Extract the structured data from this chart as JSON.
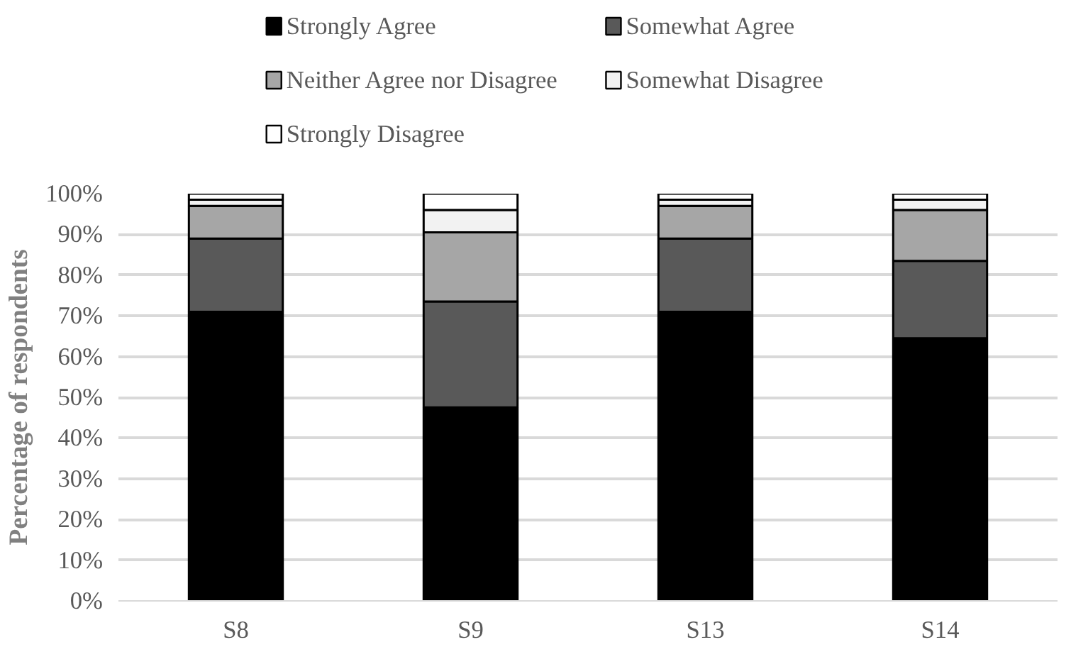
{
  "chart_data": {
    "type": "bar",
    "stacked": true,
    "ylabel": "Percentage of respondents",
    "categories": [
      "S8",
      "S9",
      "S13",
      "S14"
    ],
    "series": [
      {
        "name": "Strongly Agree",
        "color": "#000000",
        "values": [
          71,
          47.5,
          71,
          64.5
        ]
      },
      {
        "name": "Somewhat Agree",
        "color": "#595959",
        "values": [
          18,
          26,
          18,
          19
        ]
      },
      {
        "name": "Neither Agree nor Disagree",
        "color": "#a6a6a6",
        "values": [
          8,
          17,
          8,
          12.5
        ]
      },
      {
        "name": "Somewhat Disagree",
        "color": "#f2f2f2",
        "values": [
          1.5,
          5.5,
          1.5,
          2.5
        ]
      },
      {
        "name": "Strongly Disagree",
        "color": "#ffffff",
        "values": [
          1.5,
          4,
          1.5,
          1.5
        ]
      }
    ],
    "ylim": [
      0,
      100
    ],
    "yticks": [
      {
        "value": 0,
        "label": "0%"
      },
      {
        "value": 10,
        "label": "10%"
      },
      {
        "value": 20,
        "label": "20%"
      },
      {
        "value": 30,
        "label": "30%"
      },
      {
        "value": 40,
        "label": "40%"
      },
      {
        "value": 50,
        "label": "50%"
      },
      {
        "value": 60,
        "label": "60%"
      },
      {
        "value": 70,
        "label": "70%"
      },
      {
        "value": 80,
        "label": "80%"
      },
      {
        "value": 90,
        "label": "90%"
      },
      {
        "value": 100,
        "label": "100%"
      }
    ],
    "grid": "y",
    "legend": "top"
  }
}
